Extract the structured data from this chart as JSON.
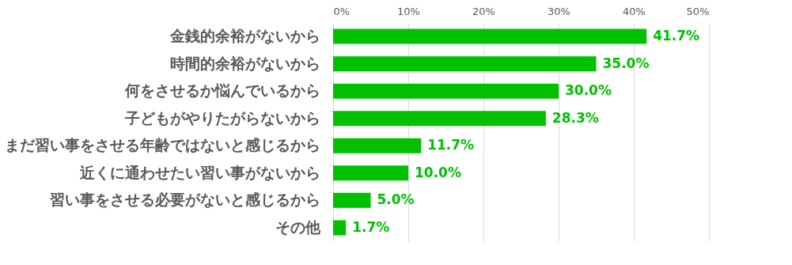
{
  "chart_data": {
    "type": "bar",
    "orientation": "horizontal",
    "categories": [
      "金銭的余裕がないから",
      "時間的余裕がないから",
      "何をさせるか悩んでいるから",
      "子どもがやりたがらないから",
      "まだ習い事をさせる年齢ではないと感じるから",
      "近くに通わせたい習い事がないから",
      "習い事をさせる必要がないと感じるから",
      "その他"
    ],
    "values": [
      41.7,
      35.0,
      30.0,
      28.3,
      11.7,
      10.0,
      5.0,
      1.7
    ],
    "value_labels": [
      "41.7%",
      "35.0%",
      "30.0%",
      "28.3%",
      "11.7%",
      "10.0%",
      "5.0%",
      "1.7%"
    ],
    "color": "#00c000",
    "xlim": [
      0,
      50
    ],
    "xticks": [
      {
        "value": 0,
        "label": "0%"
      },
      {
        "value": 10,
        "label": "10%"
      },
      {
        "value": 20,
        "label": "20%"
      },
      {
        "value": 30,
        "label": "30%"
      },
      {
        "value": 40,
        "label": "40%"
      },
      {
        "value": 50,
        "label": "50%"
      }
    ],
    "grid": "x"
  }
}
